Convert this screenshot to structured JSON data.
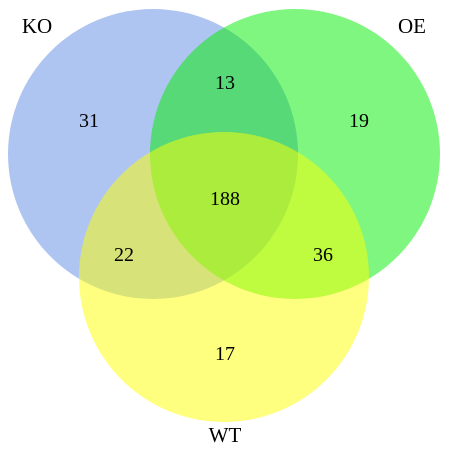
{
  "venn": {
    "sets": [
      {
        "label": "KO",
        "color": "#4d7fe0"
      },
      {
        "label": "OE",
        "color": "#00ee00"
      },
      {
        "label": "WT",
        "color": "#ffff00"
      }
    ],
    "regions": {
      "ko_only": "31",
      "oe_only": "19",
      "wt_only": "17",
      "ko_oe": "13",
      "ko_wt": "22",
      "oe_wt": "36",
      "all": "188"
    }
  }
}
